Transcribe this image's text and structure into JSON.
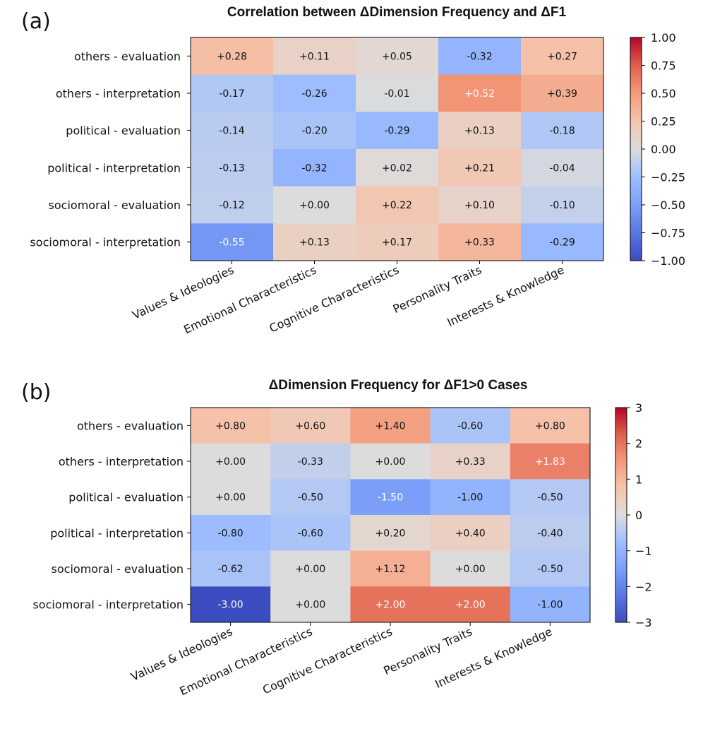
{
  "chart_data": [
    {
      "type": "heatmap",
      "panel_label": "(a)",
      "title": "Correlation between ΔDimension Frequency and ΔF1",
      "rows": [
        "others - evaluation",
        "others - interpretation",
        "political - evaluation",
        "political - interpretation",
        "sociomoral - evaluation",
        "sociomoral - interpretation"
      ],
      "columns": [
        "Values & Ideologies",
        "Emotional Characteristics",
        "Cognitive Characteristics",
        "Personality Traits",
        "Interests & Knowledge"
      ],
      "values": [
        [
          0.28,
          0.11,
          0.05,
          -0.32,
          0.27
        ],
        [
          -0.17,
          -0.26,
          -0.01,
          0.52,
          0.39
        ],
        [
          -0.14,
          -0.2,
          -0.29,
          0.13,
          -0.18
        ],
        [
          -0.13,
          -0.32,
          0.02,
          0.21,
          -0.04
        ],
        [
          -0.12,
          0.0,
          0.22,
          0.1,
          -0.1
        ],
        [
          -0.55,
          0.13,
          0.17,
          0.33,
          -0.29
        ]
      ],
      "labels": [
        [
          "+0.28",
          "+0.11",
          "+0.05",
          "-0.32",
          "+0.27"
        ],
        [
          "-0.17",
          "-0.26",
          "-0.01",
          "+0.52",
          "+0.39"
        ],
        [
          "-0.14",
          "-0.20",
          "-0.29",
          "+0.13",
          "-0.18"
        ],
        [
          "-0.13",
          "-0.32",
          "+0.02",
          "+0.21",
          "-0.04"
        ],
        [
          "-0.12",
          "+0.00",
          "+0.22",
          "+0.10",
          "-0.10"
        ],
        [
          "-0.55",
          "+0.13",
          "+0.17",
          "+0.33",
          "-0.29"
        ]
      ],
      "colorbar": {
        "min": -1.0,
        "max": 1.0,
        "ticks": [
          1.0,
          0.75,
          0.5,
          0.25,
          0.0,
          -0.25,
          -0.5,
          -0.75,
          -1.0
        ],
        "tick_labels": [
          "1.00",
          "0.75",
          "0.50",
          "0.25",
          "0.00",
          "−0.25",
          "−0.50",
          "−0.75",
          "−1.00"
        ]
      },
      "colormap": "coolwarm"
    },
    {
      "type": "heatmap",
      "panel_label": "(b)",
      "title": "ΔDimension Frequency for ΔF1>0 Cases",
      "rows": [
        "others - evaluation",
        "others - interpretation",
        "political - evaluation",
        "political - interpretation",
        "sociomoral - evaluation",
        "sociomoral - interpretation"
      ],
      "columns": [
        "Values & Ideologies",
        "Emotional Characteristics",
        "Cognitive Characteristics",
        "Personality Traits",
        "Interests & Knowledge"
      ],
      "values": [
        [
          0.8,
          0.6,
          1.4,
          -0.6,
          0.8
        ],
        [
          0.0,
          -0.33,
          0.0,
          0.33,
          1.83
        ],
        [
          0.0,
          -0.5,
          -1.5,
          -1.0,
          -0.5
        ],
        [
          -0.8,
          -0.6,
          0.2,
          0.4,
          -0.4
        ],
        [
          -0.62,
          0.0,
          1.12,
          0.0,
          -0.5
        ],
        [
          -3.0,
          0.0,
          2.0,
          2.0,
          -1.0
        ]
      ],
      "labels": [
        [
          "+0.80",
          "+0.60",
          "+1.40",
          "-0.60",
          "+0.80"
        ],
        [
          "+0.00",
          "-0.33",
          "+0.00",
          "+0.33",
          "+1.83"
        ],
        [
          "+0.00",
          "-0.50",
          "-1.50",
          "-1.00",
          "-0.50"
        ],
        [
          "-0.80",
          "-0.60",
          "+0.20",
          "+0.40",
          "-0.40"
        ],
        [
          "-0.62",
          "+0.00",
          "+1.12",
          "+0.00",
          "-0.50"
        ],
        [
          "-3.00",
          "+0.00",
          "+2.00",
          "+2.00",
          "-1.00"
        ]
      ],
      "colorbar": {
        "min": -3,
        "max": 3,
        "ticks": [
          3,
          2,
          1,
          0,
          -1,
          -2,
          -3
        ],
        "tick_labels": [
          "3",
          "2",
          "1",
          "0",
          "−1",
          "−2",
          "−3"
        ]
      },
      "colormap": "coolwarm"
    }
  ]
}
